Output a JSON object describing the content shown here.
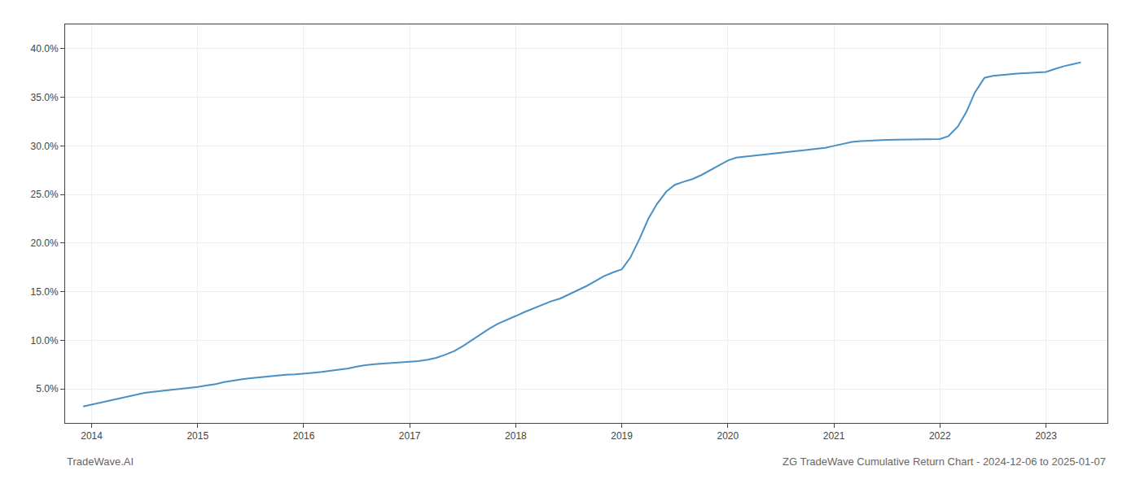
{
  "chart_data": {
    "type": "line",
    "annotations": [
      "TradeWave.AI",
      "ZG TradeWave Cumulative Return Chart - 2024-12-06 to 2025-01-07"
    ],
    "x": [
      2013.92,
      2014.0,
      2014.08,
      2014.17,
      2014.25,
      2014.33,
      2014.42,
      2014.5,
      2014.58,
      2014.67,
      2014.75,
      2014.83,
      2014.92,
      2015.0,
      2015.08,
      2015.17,
      2015.25,
      2015.33,
      2015.42,
      2015.5,
      2015.58,
      2015.67,
      2015.75,
      2015.83,
      2015.92,
      2016.0,
      2016.08,
      2016.17,
      2016.25,
      2016.33,
      2016.42,
      2016.5,
      2016.58,
      2016.67,
      2016.75,
      2016.83,
      2016.92,
      2017.0,
      2017.08,
      2017.17,
      2017.25,
      2017.33,
      2017.42,
      2017.5,
      2017.58,
      2017.67,
      2017.75,
      2017.83,
      2017.92,
      2018.0,
      2018.08,
      2018.17,
      2018.25,
      2018.33,
      2018.42,
      2018.5,
      2018.58,
      2018.67,
      2018.75,
      2018.83,
      2018.92,
      2019.0,
      2019.08,
      2019.17,
      2019.25,
      2019.33,
      2019.42,
      2019.5,
      2019.58,
      2019.67,
      2019.75,
      2019.83,
      2019.92,
      2020.0,
      2020.08,
      2020.17,
      2020.25,
      2020.33,
      2020.42,
      2020.5,
      2020.58,
      2020.67,
      2020.75,
      2020.83,
      2020.92,
      2021.0,
      2021.08,
      2021.17,
      2021.25,
      2021.33,
      2021.42,
      2021.5,
      2021.58,
      2021.67,
      2021.75,
      2021.83,
      2021.92,
      2022.0,
      2022.08,
      2022.17,
      2022.25,
      2022.33,
      2022.42,
      2022.5,
      2022.58,
      2022.67,
      2022.75,
      2022.83,
      2022.92,
      2023.0,
      2023.08,
      2023.17,
      2023.25,
      2023.33
    ],
    "values": [
      3.2,
      3.4,
      3.6,
      3.8,
      4.0,
      4.2,
      4.4,
      4.6,
      4.7,
      4.8,
      4.9,
      5.0,
      5.1,
      5.2,
      5.35,
      5.5,
      5.7,
      5.85,
      6.0,
      6.1,
      6.2,
      6.3,
      6.4,
      6.45,
      6.5,
      6.55,
      6.65,
      6.75,
      6.85,
      6.95,
      7.1,
      7.3,
      7.45,
      7.55,
      7.6,
      7.65,
      7.7,
      7.75,
      7.85,
      8.0,
      8.2,
      8.5,
      8.9,
      9.4,
      10.0,
      10.6,
      11.2,
      11.7,
      12.1,
      12.5,
      12.9,
      13.3,
      13.7,
      14.0,
      14.3,
      14.7,
      15.1,
      15.6,
      16.1,
      16.6,
      17.0,
      17.3,
      18.5,
      20.5,
      22.5,
      24.0,
      25.3,
      26.0,
      26.3,
      26.6,
      27.0,
      27.5,
      28.0,
      28.5,
      28.8,
      28.9,
      29.0,
      29.1,
      29.2,
      29.3,
      29.4,
      29.5,
      29.6,
      29.7,
      29.8,
      30.0,
      30.2,
      30.4,
      30.5,
      30.55,
      30.6,
      30.62,
      30.64,
      30.65,
      30.66,
      30.67,
      30.68,
      30.7,
      31.0,
      32.0,
      33.5,
      35.5,
      37.0,
      37.2,
      37.3,
      37.4,
      37.45,
      37.5,
      37.55,
      37.6,
      37.9,
      38.2,
      38.4,
      38.6
    ],
    "color": "#4a90c4",
    "xlim": [
      2013.75,
      2023.58
    ],
    "xticks": [
      2014,
      2015,
      2016,
      2017,
      2018,
      2019,
      2020,
      2021,
      2022,
      2023
    ],
    "ylim": [
      1.5,
      42.5
    ],
    "yticks": [
      {
        "value": 5.0,
        "label": "5.0%"
      },
      {
        "value": 10.0,
        "label": "10.0%"
      },
      {
        "value": 15.0,
        "label": "15.0%"
      },
      {
        "value": 20.0,
        "label": "20.0%"
      },
      {
        "value": 25.0,
        "label": "25.0%"
      },
      {
        "value": 30.0,
        "label": "30.0%"
      },
      {
        "value": 35.0,
        "label": "35.0%"
      },
      {
        "value": 40.0,
        "label": "40.0%"
      }
    ],
    "grid": true
  }
}
